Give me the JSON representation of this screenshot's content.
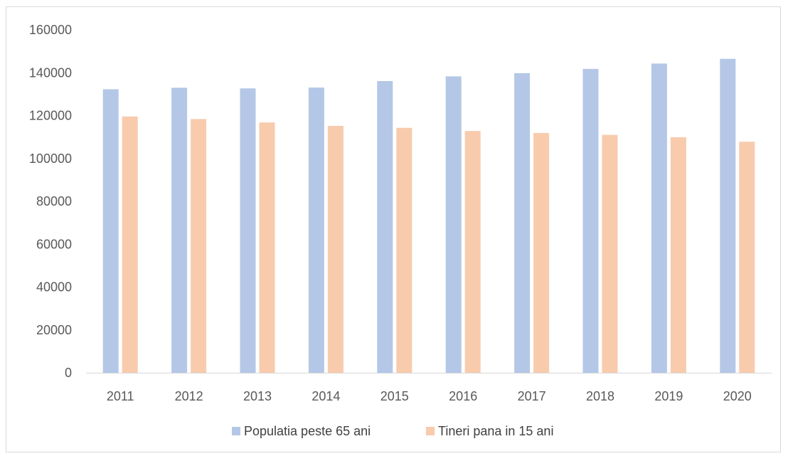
{
  "chart_data": {
    "type": "bar",
    "title": "",
    "xlabel": "",
    "ylabel": "",
    "categories": [
      "2011",
      "2012",
      "2013",
      "2014",
      "2015",
      "2016",
      "2017",
      "2018",
      "2019",
      "2020"
    ],
    "series": [
      {
        "name": "Populatia peste 65 ani",
        "color": "#b4c7e7",
        "values": [
          132300,
          133000,
          132700,
          133100,
          136100,
          138300,
          139800,
          141800,
          144300,
          146500
        ]
      },
      {
        "name": "Tineri pana in 15 ani",
        "color": "#f8cbad",
        "values": [
          119600,
          118400,
          116800,
          115200,
          114300,
          112800,
          111900,
          111000,
          109900,
          107800
        ]
      }
    ],
    "ylim": [
      0,
      160000
    ],
    "yticks": [
      "0",
      "20000",
      "40000",
      "60000",
      "80000",
      "100000",
      "120000",
      "140000",
      "160000"
    ],
    "grid": false,
    "legend_position": "bottom"
  }
}
